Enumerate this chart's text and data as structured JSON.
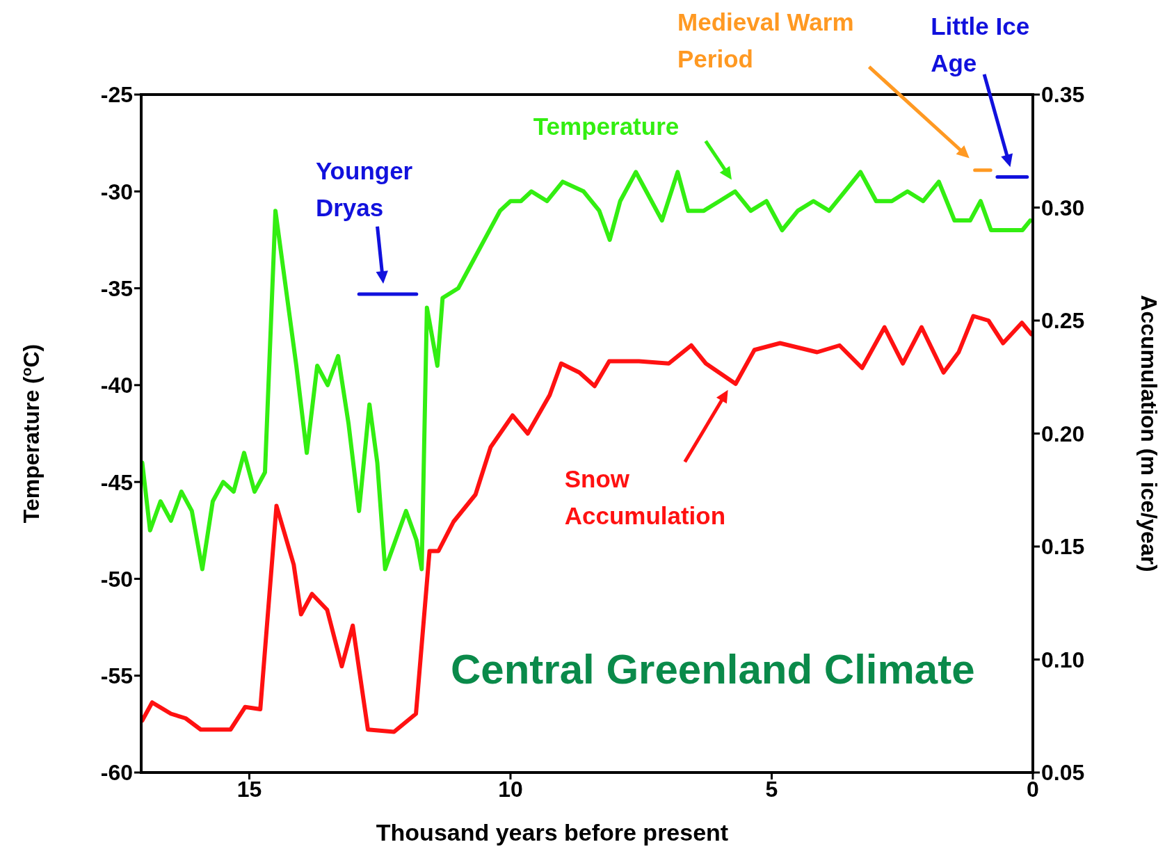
{
  "chart_data": {
    "type": "line",
    "title": "Central Greenland Climate",
    "xlabel": "Thousand years before present",
    "ylabel": "Temperature ($^{o}$C)",
    "y2label": "Accumulation (m ice/year)",
    "xlim": [
      17.07,
      0
    ],
    "xticks": [
      15,
      10,
      5,
      0
    ],
    "ylim": [
      -60,
      -25
    ],
    "yticks": [
      -60,
      -55,
      -50,
      -45,
      -40,
      -35,
      -30,
      -25
    ],
    "y2lim": [
      0.05,
      0.35
    ],
    "y2ticks": [
      {
        "value": 0.05,
        "label": "0.05"
      },
      {
        "value": 0.1,
        "label": "0.10"
      },
      {
        "value": 0.15,
        "label": "0.15"
      },
      {
        "value": 0.2,
        "label": "0.20"
      },
      {
        "value": 0.25,
        "label": "0.25"
      },
      {
        "value": 0.3,
        "label": "0.30"
      },
      {
        "value": 0.35,
        "label": "0.35"
      }
    ],
    "series": [
      {
        "color": "#33ee11",
        "axis": "y",
        "x": [
          17.05,
          16.9,
          16.7,
          16.5,
          16.3,
          16.1,
          15.9,
          15.7,
          15.5,
          15.3,
          15.1,
          14.9,
          14.7,
          14.5,
          14.3,
          14.1,
          13.9,
          13.7,
          13.5,
          13.3,
          13.1,
          12.9,
          12.7,
          12.55,
          12.4,
          12.2,
          12.0,
          11.8,
          11.7,
          11.6,
          11.4,
          11.3,
          11.0,
          10.8,
          10.5,
          10.2,
          10.0,
          9.8,
          9.6,
          9.3,
          9.0,
          8.6,
          8.3,
          8.1,
          7.9,
          7.6,
          7.4,
          7.1,
          6.8,
          6.6,
          6.3,
          6.0,
          5.7,
          5.4,
          5.1,
          4.8,
          4.5,
          4.2,
          3.9,
          3.6,
          3.3,
          3.0,
          2.7,
          2.4,
          2.1,
          1.8,
          1.5,
          1.2,
          1.0,
          0.8,
          0.5,
          0.2,
          0.05
        ],
        "values": [
          -44,
          -47.5,
          -46,
          -47,
          -45.5,
          -46.5,
          -49.5,
          -46,
          -45,
          -45.5,
          -43.5,
          -45.5,
          -44.5,
          -31,
          -35,
          -39,
          -43.5,
          -39,
          -40,
          -38.5,
          -42,
          -46.5,
          -41,
          -44,
          -49.5,
          -48,
          -46.5,
          -48,
          -49.5,
          -36,
          -39,
          -35.5,
          -35,
          -34,
          -32.5,
          -31,
          -30.5,
          -30.5,
          -30,
          -30.5,
          -29.5,
          -30,
          -31,
          -32.5,
          -30.5,
          -29,
          -30,
          -31.5,
          -29,
          -31,
          -31,
          -30.5,
          -30,
          -31,
          -30.5,
          -32,
          -31,
          -30.5,
          -31,
          -30,
          -29,
          -30.5,
          -30.5,
          -30,
          -30.5,
          -29.5,
          -31.5,
          -31.5,
          -30.5,
          -32,
          -32,
          -32,
          -31.5
        ]
      },
      {
        "color": "#ff1111",
        "axis": "y2",
        "x": [
          17.05,
          16.86,
          16.5,
          16.22,
          15.93,
          15.36,
          15.08,
          14.79,
          14.48,
          14.15,
          14.01,
          13.8,
          13.51,
          13.23,
          13.02,
          12.73,
          12.23,
          11.81,
          11.55,
          11.38,
          11.09,
          10.67,
          10.38,
          9.96,
          9.67,
          9.25,
          9.03,
          8.68,
          8.39,
          8.11,
          7.54,
          6.97,
          6.54,
          6.26,
          5.69,
          5.33,
          4.84,
          4.13,
          3.7,
          3.27,
          2.84,
          2.49,
          2.13,
          1.71,
          1.42,
          1.14,
          0.85,
          0.57,
          0.21,
          0.03
        ],
        "values": [
          0.073,
          0.081,
          0.076,
          0.074,
          0.069,
          0.069,
          0.079,
          0.078,
          0.168,
          0.142,
          0.12,
          0.129,
          0.122,
          0.097,
          0.115,
          0.069,
          0.068,
          0.076,
          0.148,
          0.148,
          0.161,
          0.173,
          0.194,
          0.208,
          0.2,
          0.217,
          0.231,
          0.227,
          0.221,
          0.232,
          0.232,
          0.231,
          0.239,
          0.231,
          0.222,
          0.237,
          0.24,
          0.236,
          0.239,
          0.229,
          0.247,
          0.231,
          0.247,
          0.227,
          0.236,
          0.252,
          0.25,
          0.24,
          0.249,
          0.244
        ]
      },
      {
        "color": "#1111dd",
        "axis": "y",
        "x": [
          12.9,
          11.8
        ],
        "values": [
          -35.3,
          -35.3
        ]
      },
      {
        "color": "#ff9922",
        "axis": "y",
        "x": [
          1.11,
          0.81
        ],
        "values": [
          -28.9,
          -28.9
        ]
      },
      {
        "color": "#1111dd",
        "axis": "y",
        "x": [
          0.68,
          0.11
        ],
        "values": [
          -29.25,
          -29.25
        ]
      }
    ],
    "annotations": [
      {
        "text": "Younger Dryas",
        "x": 12.35,
        "y": -35.3
      },
      "Medieval Warm Period",
      "Little Ice Age",
      "Temperature",
      "Snow Accumulation"
    ]
  }
}
